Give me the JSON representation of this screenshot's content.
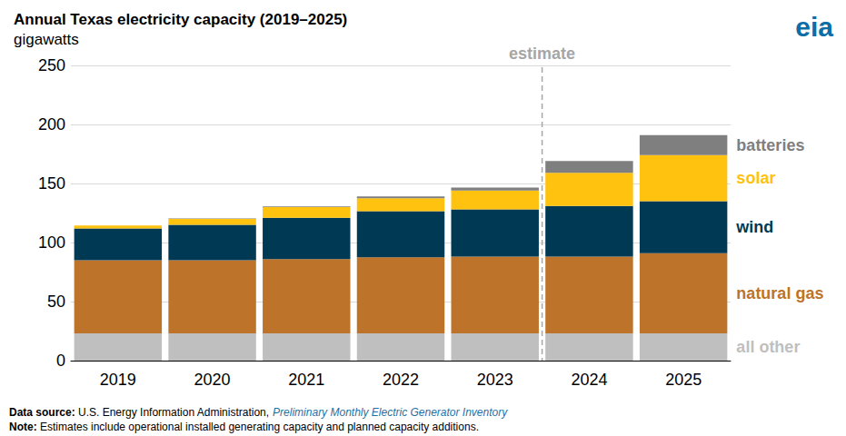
{
  "chart_data": {
    "type": "bar",
    "title": "Annual Texas electricity capacity (2019–2025)",
    "subtitle": "gigawatts",
    "logo": "eia",
    "categories": [
      "2019",
      "2020",
      "2021",
      "2022",
      "2023",
      "2024",
      "2025"
    ],
    "series": [
      {
        "name": "all other",
        "color": "#bfbfbf",
        "values": [
          23,
          23,
          23,
          23,
          23,
          23,
          23
        ]
      },
      {
        "name": "natural gas",
        "color": "#bd732a",
        "values": [
          62,
          62,
          63,
          64.5,
          65,
          65,
          68
        ]
      },
      {
        "name": "wind",
        "color": "#003953",
        "values": [
          27,
          30,
          35,
          39,
          40,
          43,
          44
        ]
      },
      {
        "name": "solar",
        "color": "#ffc20e",
        "values": [
          2.5,
          5,
          9,
          11,
          16,
          28,
          39
        ]
      },
      {
        "name": "batteries",
        "color": "#7f7f7f",
        "values": [
          0,
          0.3,
          0.5,
          1.5,
          2.5,
          10,
          17
        ]
      }
    ],
    "stacked": true,
    "legend": "right",
    "grid": true,
    "ylim": [
      0,
      250
    ],
    "yticks": [
      0,
      50,
      100,
      150,
      200,
      250
    ],
    "annotations": [
      {
        "text": "estimate",
        "between": [
          "2023",
          "2024"
        ]
      }
    ],
    "source": {
      "label": "Data source:",
      "text": "U.S. Energy Information Administration,",
      "link": "Preliminary Monthly Electric Generator Inventory"
    },
    "note": {
      "label": "Note:",
      "text": "Estimates include operational installed generating capacity and planned capacity additions."
    }
  }
}
